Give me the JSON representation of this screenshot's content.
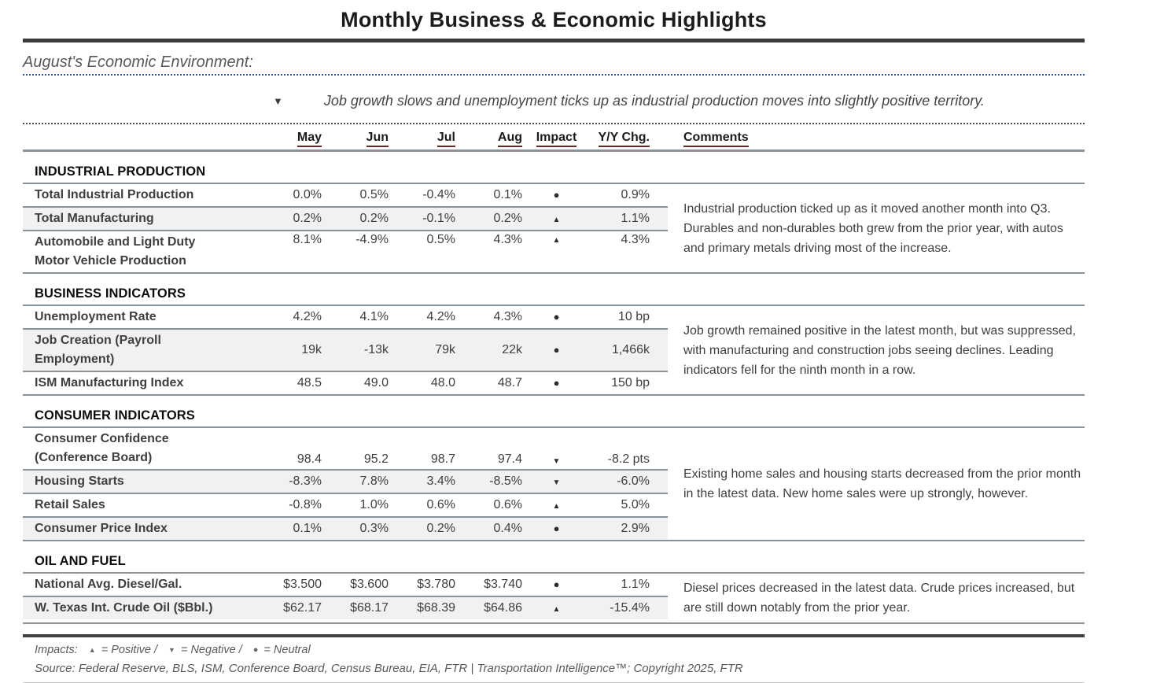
{
  "title": "Monthly Business & Economic Highlights",
  "environment": {
    "heading": "August's Economic Environment:",
    "bullet_glyph": "▼",
    "bullet_text": "Job growth slows and unemployment ticks up as industrial production moves into slightly positive territory."
  },
  "table": {
    "columns": [
      "May",
      "Jun",
      "Jul",
      "Aug",
      "Impact",
      "Y/Y Chg.",
      "Comments"
    ],
    "impact_icons": {
      "positive": "▲",
      "negative": "▼",
      "neutral": "●"
    },
    "sections": [
      {
        "name": "INDUSTRIAL PRODUCTION",
        "comment": "Industrial production ticked up as it moved another month into Q3. Durables and non-durables both grew from the prior year, with autos and primary metals driving most of the increase.",
        "rows": [
          {
            "label": "Total Industrial Production",
            "values": [
              "0.0%",
              "0.5%",
              "-0.4%",
              "0.1%"
            ],
            "impact": "neutral",
            "yy": "0.9%"
          },
          {
            "label": "Total Manufacturing",
            "values": [
              "0.2%",
              "0.2%",
              "-0.1%",
              "0.2%"
            ],
            "impact": "positive",
            "yy": "1.1%"
          },
          {
            "label": "Automobile and Light Duty\nMotor Vehicle Production",
            "values": [
              "8.1%",
              "-4.9%",
              "0.5%",
              "4.3%"
            ],
            "impact": "positive",
            "yy": "4.3%"
          }
        ]
      },
      {
        "name": "BUSINESS INDICATORS",
        "comment": "Job growth remained positive in the latest month, but was suppressed, with manufacturing and construction jobs seeing declines. Leading indicators fell for the ninth month in a row.",
        "rows": [
          {
            "label": "Unemployment Rate",
            "values": [
              "4.2%",
              "4.1%",
              "4.2%",
              "4.3%"
            ],
            "impact": "neutral",
            "yy": "10 bp"
          },
          {
            "label": "Job Creation (Payroll\nEmployment)",
            "values": [
              "19k",
              "-13k",
              "79k",
              "22k"
            ],
            "impact": "neutral",
            "yy": "1,466k"
          },
          {
            "label": "ISM Manufacturing Index",
            "values": [
              "48.5",
              "49.0",
              "48.0",
              "48.7"
            ],
            "impact": "neutral",
            "yy": "150 bp"
          }
        ]
      },
      {
        "name": "CONSUMER INDICATORS",
        "comment": "Existing home sales and housing starts decreased from the prior month in the latest data. New home sales were up strongly, however.",
        "rows": [
          {
            "label": "Consumer Confidence\n(Conference Board)",
            "values": [
              "98.4",
              "95.2",
              "98.7",
              "97.4"
            ],
            "impact": "negative",
            "yy": "-8.2 pts"
          },
          {
            "label": "Housing Starts",
            "values": [
              "-8.3%",
              "7.8%",
              "3.4%",
              "-8.5%"
            ],
            "impact": "negative",
            "yy": "-6.0%"
          },
          {
            "label": "Retail Sales",
            "values": [
              "-0.8%",
              "1.0%",
              "0.6%",
              "0.6%"
            ],
            "impact": "positive",
            "yy": "5.0%"
          },
          {
            "label": "Consumer Price Index",
            "values": [
              "0.1%",
              "0.3%",
              "0.2%",
              "0.4%"
            ],
            "impact": "neutral",
            "yy": "2.9%"
          }
        ]
      },
      {
        "name": "OIL AND FUEL",
        "comment": "Diesel prices decreased in the latest data. Crude prices increased, but are still down notably from the prior year.",
        "rows": [
          {
            "label": "National Avg. Diesel/Gal.",
            "values": [
              "$3.500",
              "$3.600",
              "$3.780",
              "$3.740"
            ],
            "impact": "neutral",
            "yy": "1.1%"
          },
          {
            "label": "W. Texas Int. Crude Oil ($Bbl.)",
            "values": [
              "$62.17",
              "$68.17",
              "$68.39",
              "$64.86"
            ],
            "impact": "positive",
            "yy": "-15.4%"
          }
        ]
      }
    ]
  },
  "footer": {
    "legend": {
      "prefix": "Impacts:",
      "positive_glyph": "▲",
      "positive_label": "= Positive /",
      "negative_glyph": "▼",
      "negative_label": "= Negative /",
      "neutral_glyph": "●",
      "neutral_label": "= Neutral"
    },
    "source": "Source: Federal Reserve, BLS, ISM, Conference Board, Census Bureau, EIA, FTR | Transportation Intelligence™; Copyright 2025, FTR"
  }
}
